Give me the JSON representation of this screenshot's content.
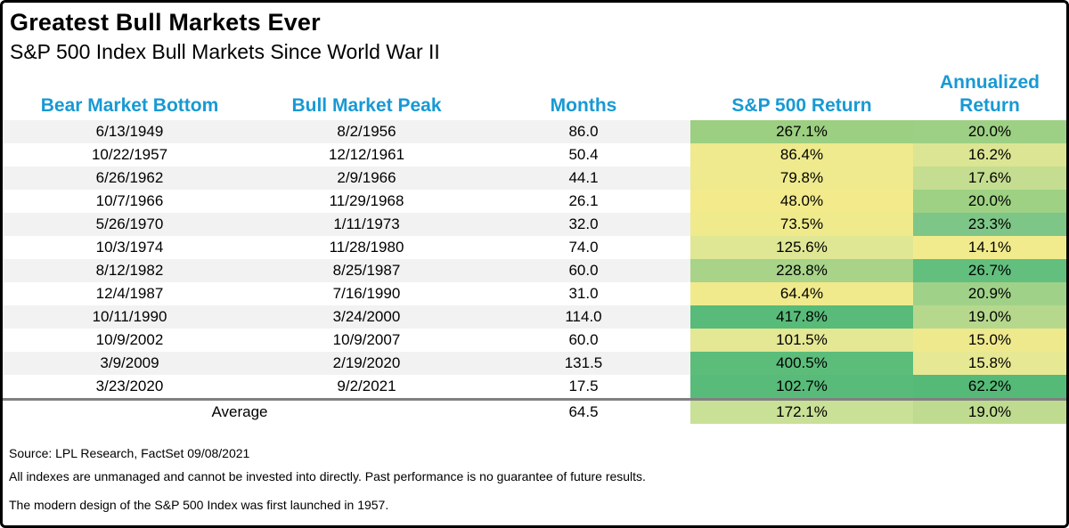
{
  "style": {
    "accent_blue": "#1899d4",
    "stripe_gray": "#f2f2f2",
    "separator_gray": "#808080",
    "border_black": "#000000"
  },
  "chart_data": {
    "type": "table",
    "title": "Greatest Bull Markets Ever",
    "subtitle": "S&P 500 Index Bull Markets Since World War II",
    "columns": [
      "Bear Market Bottom",
      "Bull Market Peak",
      "Months",
      "S&P 500 Return",
      "Annualized Return"
    ],
    "rows": [
      {
        "bear_market_bottom": "6/13/1949",
        "bull_market_peak": "8/2/1956",
        "months": "86.0",
        "sp500_return": "267.1%",
        "annualized_return": "20.0%",
        "sp500_color": "#9ccf81",
        "annualized_color": "#9dd084"
      },
      {
        "bear_market_bottom": "10/22/1957",
        "bull_market_peak": "12/12/1961",
        "months": "50.4",
        "sp500_return": "86.4%",
        "annualized_return": "16.2%",
        "sp500_color": "#eeea8d",
        "annualized_color": "#dce593"
      },
      {
        "bear_market_bottom": "6/26/1962",
        "bull_market_peak": "2/9/1966",
        "months": "44.1",
        "sp500_return": "79.8%",
        "annualized_return": "17.6%",
        "sp500_color": "#eeea8d",
        "annualized_color": "#c4dd90"
      },
      {
        "bear_market_bottom": "10/7/1966",
        "bull_market_peak": "11/29/1968",
        "months": "26.1",
        "sp500_return": "48.0%",
        "annualized_return": "20.0%",
        "sp500_color": "#f2ea8b",
        "annualized_color": "#9ed183"
      },
      {
        "bear_market_bottom": "5/26/1970",
        "bull_market_peak": "1/11/1973",
        "months": "32.0",
        "sp500_return": "73.5%",
        "annualized_return": "23.3%",
        "sp500_color": "#efea8c",
        "annualized_color": "#7ec687"
      },
      {
        "bear_market_bottom": "10/3/1974",
        "bull_market_peak": "11/28/1980",
        "months": "74.0",
        "sp500_return": "125.6%",
        "annualized_return": "14.1%",
        "sp500_color": "#dfe795",
        "annualized_color": "#f2eb8d"
      },
      {
        "bear_market_bottom": "8/12/1982",
        "bull_market_peak": "8/25/1987",
        "months": "60.0",
        "sp500_return": "228.8%",
        "annualized_return": "26.7%",
        "sp500_color": "#a8d389",
        "annualized_color": "#62bf7e"
      },
      {
        "bear_market_bottom": "12/4/1987",
        "bull_market_peak": "7/16/1990",
        "months": "31.0",
        "sp500_return": "64.4%",
        "annualized_return": "20.9%",
        "sp500_color": "#f0ea8c",
        "annualized_color": "#a0d189"
      },
      {
        "bear_market_bottom": "10/11/1990",
        "bull_market_peak": "3/24/2000",
        "months": "114.0",
        "sp500_return": "417.8%",
        "annualized_return": "19.0%",
        "sp500_color": "#58bb79",
        "annualized_color": "#b6d88d"
      },
      {
        "bear_market_bottom": "10/9/2002",
        "bull_market_peak": "10/9/2007",
        "months": "60.0",
        "sp500_return": "101.5%",
        "annualized_return": "15.0%",
        "sp500_color": "#e4e794",
        "annualized_color": "#efe98e"
      },
      {
        "bear_market_bottom": "3/9/2009",
        "bull_market_peak": "2/19/2020",
        "months": "131.5",
        "sp500_return": "400.5%",
        "annualized_return": "15.8%",
        "sp500_color": "#5cbd7b",
        "annualized_color": "#e7e894"
      },
      {
        "bear_market_bottom": "3/23/2020",
        "bull_market_peak": "9/2/2021",
        "months": "17.5",
        "sp500_return": "102.7%",
        "annualized_return": "62.2%",
        "sp500_color": "#58bb79",
        "annualized_color": "#55ba77"
      }
    ],
    "average": {
      "label": "Average",
      "months": "64.5",
      "sp500_return": "172.1%",
      "annualized_return": "19.0%",
      "sp500_color": "#c9e097",
      "annualized_color": "#bedb90"
    }
  },
  "footer": {
    "source": "Source: LPL Research, FactSet 09/08/2021",
    "disclaimer": "All indexes are unmanaged and cannot be invested into directly. Past performance is no guarantee of future results.",
    "note": "The modern design of the S&P 500 Index was first launched in 1957."
  }
}
